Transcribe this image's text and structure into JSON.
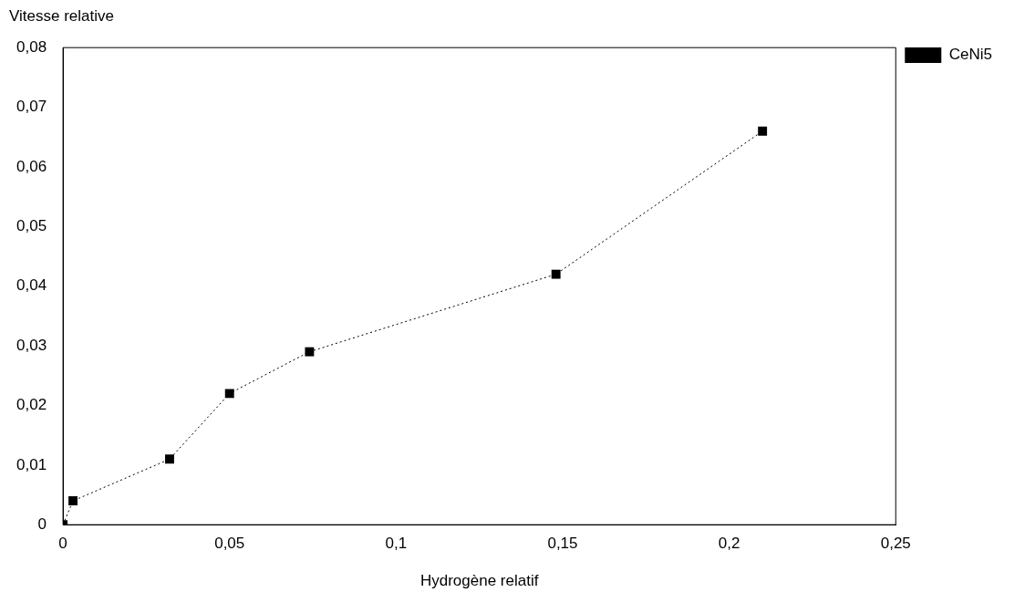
{
  "chart_data": {
    "type": "line",
    "xlabel": "Hydrogène relatif",
    "ylabel": "Vitesse relative",
    "x": [
      0,
      0.003,
      0.032,
      0.05,
      0.074,
      0.148,
      0.21
    ],
    "series": [
      {
        "name": "CeNi5",
        "color": "#000000",
        "values": [
          0,
          0.004,
          0.011,
          0.022,
          0.029,
          0.042,
          0.066
        ]
      }
    ],
    "xlim": [
      0,
      0.25
    ],
    "xticks": [
      0,
      {
        "value": 0.05,
        "label": "0,05"
      },
      {
        "value": 0.1,
        "label": "0,1"
      },
      {
        "value": 0.15,
        "label": "0,15"
      },
      {
        "value": 0.2,
        "label": "0,2"
      },
      {
        "value": 0.25,
        "label": "0,25"
      }
    ],
    "ylim": [
      0,
      0.08
    ],
    "yticks": [
      0,
      {
        "value": 0.01,
        "label": "0,01"
      },
      {
        "value": 0.02,
        "label": "0,02"
      },
      {
        "value": 0.03,
        "label": "0,03"
      },
      {
        "value": 0.04,
        "label": "0,04"
      },
      {
        "value": 0.05,
        "label": "0,05"
      },
      {
        "value": 0.06,
        "label": "0,06"
      },
      {
        "value": 0.07,
        "label": "0,07"
      },
      {
        "value": 0.08,
        "label": "0,08"
      }
    ],
    "grid": false,
    "legend": "top right",
    "marker": "square",
    "line_style": "dotted"
  }
}
